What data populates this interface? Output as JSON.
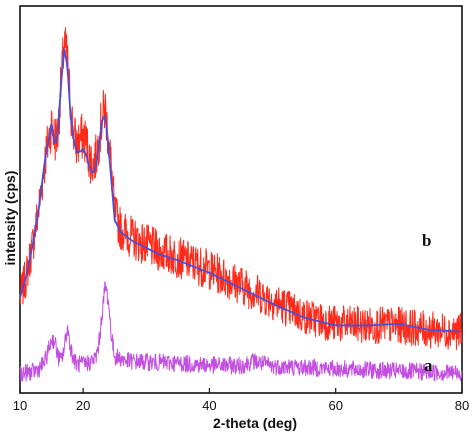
{
  "chart_data": {
    "type": "line",
    "xlabel": "2-theta (deg)",
    "ylabel": "intensity (cps)",
    "xlim": [
      10,
      80
    ],
    "xticks": [
      "10",
      "20",
      "40",
      "60",
      "80"
    ],
    "y_ticks_shown": false,
    "grid": false,
    "series": [
      {
        "name": "b",
        "color": "#ff2a1a",
        "style": "noisy",
        "x": [
          10,
          11,
          12,
          13,
          14,
          15,
          15.5,
          16,
          16.5,
          17,
          17.5,
          18,
          18.5,
          19,
          19.5,
          20,
          20.5,
          21,
          21.5,
          22,
          22.5,
          23,
          23.5,
          24,
          24.5,
          25,
          26,
          28,
          30,
          32,
          35,
          40,
          45,
          50,
          55,
          60,
          65,
          70,
          75,
          80
        ],
        "y": [
          2.5,
          3.2,
          4.2,
          5.4,
          7.0,
          8.1,
          7.6,
          7.8,
          9.4,
          10.7,
          10.2,
          8.6,
          7.8,
          7.4,
          7.6,
          7.7,
          7.5,
          7.0,
          6.8,
          7.0,
          7.6,
          8.3,
          8.6,
          7.6,
          6.6,
          5.2,
          4.7,
          4.4,
          4.2,
          4.0,
          3.8,
          3.4,
          2.9,
          2.4,
          1.9,
          1.65,
          1.6,
          1.6,
          1.45,
          1.4
        ]
      },
      {
        "name": "b",
        "color": "#4b4fd6",
        "style": "smooth",
        "x": [
          10,
          11,
          12,
          13,
          14,
          15,
          15.5,
          16,
          16.5,
          17,
          17.5,
          18,
          18.5,
          19,
          19.5,
          20,
          20.5,
          21,
          21.5,
          22,
          22.5,
          23,
          23.5,
          24,
          24.5,
          25,
          26,
          28,
          30,
          32,
          35,
          40,
          45,
          50,
          55,
          60,
          65,
          70,
          75,
          80
        ],
        "y": [
          2.5,
          3.2,
          4.2,
          5.4,
          7.0,
          8.1,
          7.4,
          7.8,
          9.4,
          10.5,
          10.0,
          8.4,
          7.6,
          7.2,
          7.2,
          7.3,
          7.1,
          6.7,
          6.5,
          6.7,
          7.4,
          8.2,
          8.4,
          7.4,
          6.2,
          5.0,
          4.6,
          4.3,
          4.1,
          3.9,
          3.7,
          3.3,
          2.8,
          2.3,
          1.85,
          1.6,
          1.6,
          1.65,
          1.45,
          1.4
        ]
      },
      {
        "name": "a",
        "color": "#c24fe0",
        "style": "noisy",
        "x": [
          10,
          12,
          13,
          14,
          15,
          15.5,
          16,
          16.5,
          17,
          17.5,
          18,
          18.5,
          19,
          20,
          21,
          22,
          22.5,
          23,
          23.5,
          24,
          24.5,
          25,
          27,
          30,
          35,
          40,
          45,
          47,
          50,
          55,
          60,
          70,
          80
        ],
        "y": [
          0.05,
          0.1,
          0.2,
          0.45,
          1.15,
          1.1,
          0.6,
          0.45,
          0.85,
          1.55,
          0.9,
          0.5,
          0.35,
          0.35,
          0.4,
          0.55,
          1.0,
          2.0,
          2.9,
          2.4,
          1.2,
          0.6,
          0.45,
          0.42,
          0.38,
          0.32,
          0.3,
          0.45,
          0.28,
          0.25,
          0.2,
          0.12,
          0.06
        ]
      }
    ]
  }
}
